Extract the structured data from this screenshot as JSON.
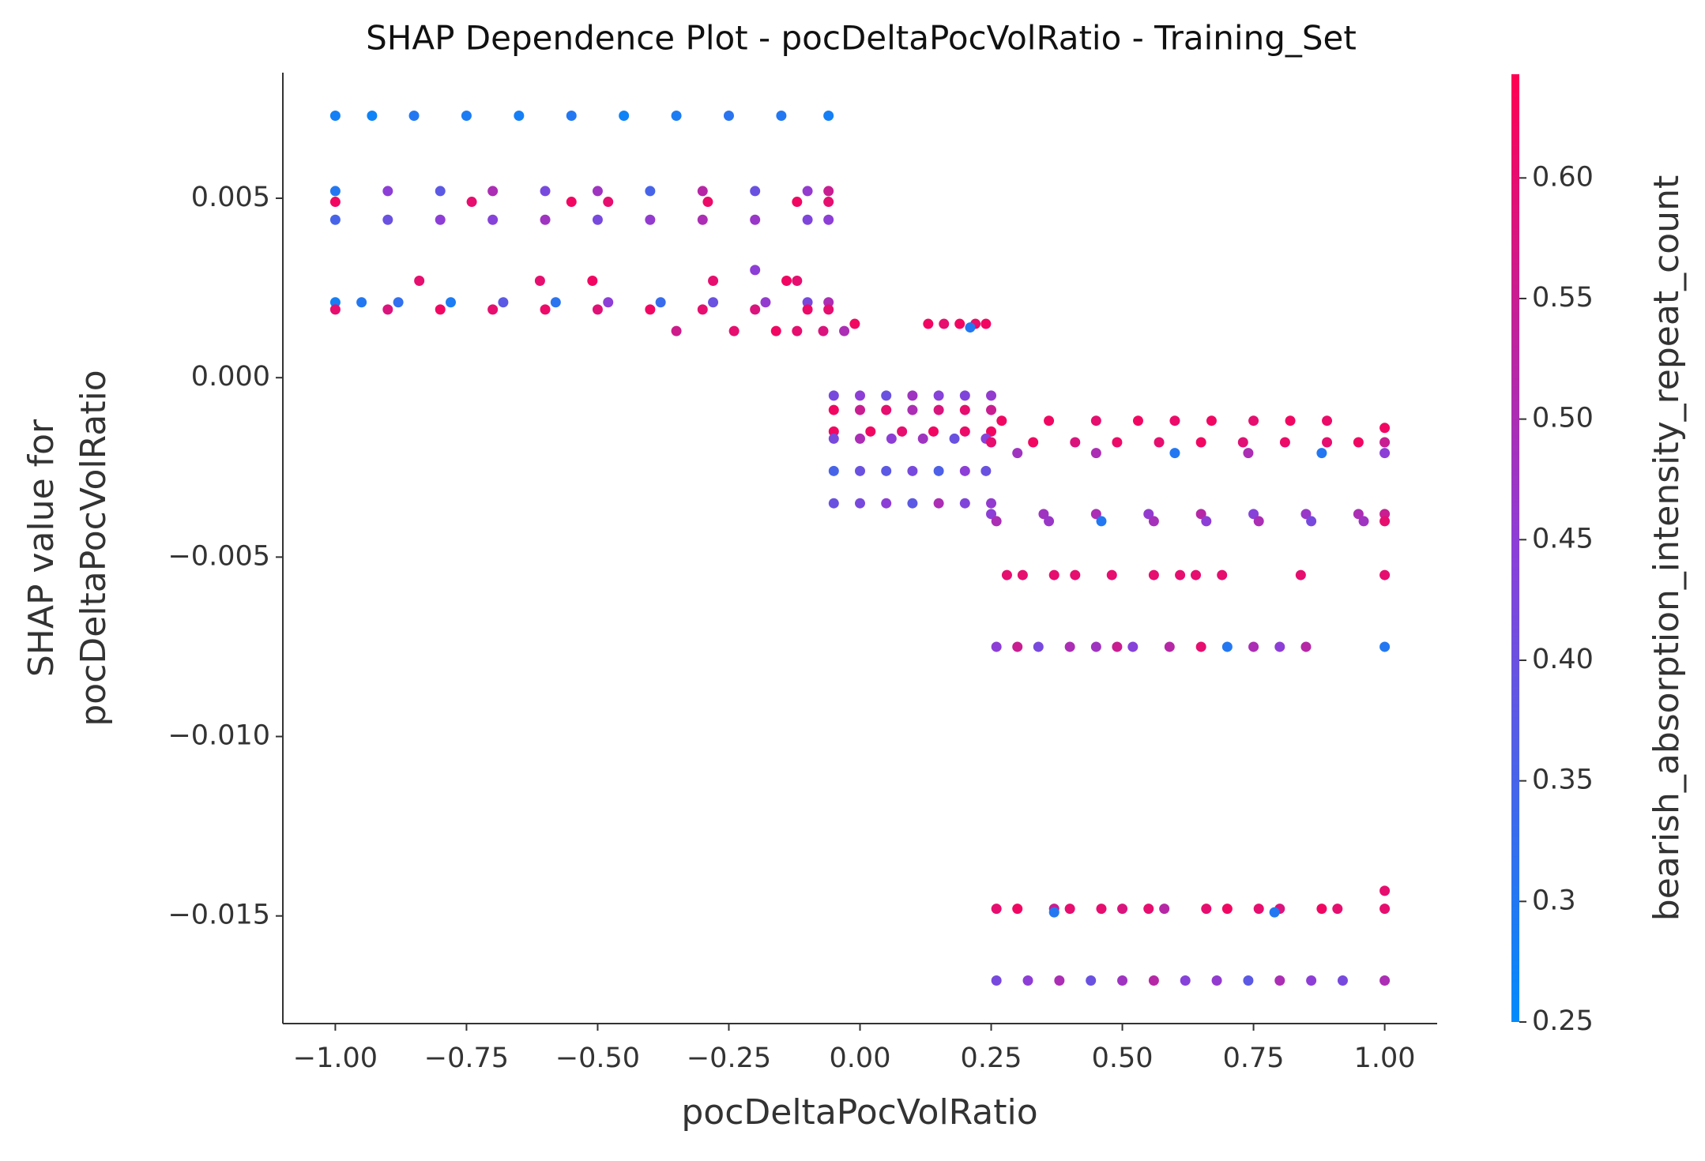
{
  "chart_data": {
    "type": "scatter",
    "title": "SHAP Dependence Plot - pocDeltaPocVolRatio - Training_Set",
    "xlabel": "pocDeltaPocVolRatio",
    "ylabel": [
      "SHAP value for",
      "pocDeltaPocVolRatio"
    ],
    "colorbar_label": "bearish_absorption_intensity_repeat_count",
    "xlim": [
      -1.1,
      1.1
    ],
    "ylim": [
      -0.018,
      0.0085
    ],
    "colorbar_lim": [
      0.25,
      0.643
    ],
    "cmap": [
      "#008bfb",
      "#8b3fd8",
      "#ff0052"
    ],
    "xticks": [
      {
        "value": -1,
        "label": "−1.00"
      },
      {
        "value": -0.75,
        "label": "−0.75"
      },
      {
        "value": -0.5,
        "label": "−0.50"
      },
      {
        "value": -0.25,
        "label": "−0.25"
      },
      {
        "value": 0,
        "label": "0.00"
      },
      {
        "value": 0.25,
        "label": "0.25"
      },
      {
        "value": 0.5,
        "label": "0.50"
      },
      {
        "value": 0.75,
        "label": "0.75"
      },
      {
        "value": 1,
        "label": "1.00"
      }
    ],
    "yticks": [
      {
        "value": -0.015,
        "label": "−0.015"
      },
      {
        "value": -0.01,
        "label": "−0.010"
      },
      {
        "value": -0.005,
        "label": "−0.005"
      },
      {
        "value": 0,
        "label": "0.000"
      },
      0.005
    ],
    "colorbar_ticks": [
      {
        "value": 0.25,
        "label": "0.25"
      },
      0.3,
      0.35,
      {
        "value": 0.4,
        "label": "0.40"
      },
      0.45,
      {
        "value": 0.5,
        "label": "0.50"
      },
      0.55,
      {
        "value": 0.6,
        "label": "0.60"
      }
    ],
    "x": [
      -1.0,
      -0.93,
      -0.85,
      -0.75,
      -0.65,
      -0.55,
      -0.45,
      -0.35,
      -0.25,
      -0.15,
      -0.06,
      -1.0,
      -0.9,
      -0.8,
      -0.7,
      -0.6,
      -0.5,
      -0.4,
      -0.3,
      -0.2,
      -0.1,
      -0.06,
      -1.0,
      -0.74,
      -0.55,
      -0.48,
      -0.29,
      -0.12,
      -0.06,
      -1.0,
      -0.9,
      -0.8,
      -0.7,
      -0.6,
      -0.5,
      -0.4,
      -0.3,
      -0.2,
      -0.1,
      -0.06,
      -0.84,
      -0.61,
      -0.51,
      -0.28,
      -0.2,
      -0.14,
      -0.12,
      -1.0,
      -0.95,
      -0.88,
      -0.78,
      -0.68,
      -0.58,
      -0.48,
      -0.38,
      -0.28,
      -0.18,
      -0.1,
      -0.06,
      -1.0,
      -0.9,
      -0.8,
      -0.7,
      -0.6,
      -0.5,
      -0.4,
      -0.3,
      -0.2,
      -0.1,
      -0.06,
      -0.35,
      -0.24,
      -0.16,
      -0.12,
      -0.07,
      -0.03,
      -0.01,
      0.13,
      0.16,
      0.19,
      0.22,
      0.24,
      0.21,
      -0.05,
      0.0,
      0.05,
      0.1,
      0.15,
      0.2,
      0.25,
      -0.05,
      0.0,
      0.05,
      0.1,
      0.15,
      0.2,
      0.25,
      -0.05,
      0.02,
      0.08,
      0.14,
      0.2,
      0.25,
      -0.05,
      0.0,
      0.06,
      0.12,
      0.18,
      0.24,
      -0.05,
      0.0,
      0.05,
      0.1,
      0.15,
      0.2,
      0.24,
      -0.05,
      0.0,
      0.05,
      0.1,
      0.15,
      0.2,
      0.25,
      0.27,
      0.36,
      0.45,
      0.53,
      0.6,
      0.67,
      0.75,
      0.82,
      0.89,
      1.0,
      0.25,
      0.33,
      0.41,
      0.49,
      0.57,
      0.65,
      0.73,
      0.81,
      0.89,
      0.95,
      1.0,
      0.3,
      0.45,
      0.6,
      0.74,
      0.88,
      1.0,
      0.25,
      0.35,
      0.45,
      0.55,
      0.65,
      0.75,
      0.85,
      0.95,
      1.0,
      0.26,
      0.36,
      0.46,
      0.56,
      0.66,
      0.76,
      0.86,
      0.96,
      1.0,
      0.28,
      0.31,
      0.37,
      0.41,
      0.48,
      0.56,
      0.61,
      0.64,
      0.69,
      0.84,
      1.0,
      0.26,
      0.3,
      0.34,
      0.4,
      0.45,
      0.49,
      0.52,
      0.59,
      0.65,
      0.7,
      0.75,
      0.8,
      0.85,
      1.0,
      0.26,
      0.3,
      0.37,
      0.4,
      0.46,
      0.5,
      0.55,
      0.58,
      0.66,
      0.7,
      0.76,
      0.8,
      0.88,
      0.91,
      1.0,
      0.37,
      0.79,
      1.0,
      0.26,
      0.32,
      0.38,
      0.44,
      0.5,
      0.56,
      0.62,
      0.68,
      0.74,
      0.8,
      0.86,
      0.92,
      1.0
    ],
    "values": [
      0.0073,
      0.0073,
      0.0073,
      0.0073,
      0.0073,
      0.0073,
      0.0073,
      0.0073,
      0.0073,
      0.0073,
      0.0073,
      0.0052,
      0.0052,
      0.0052,
      0.0052,
      0.0052,
      0.0052,
      0.0052,
      0.0052,
      0.0052,
      0.0052,
      0.0052,
      0.0049,
      0.0049,
      0.0049,
      0.0049,
      0.0049,
      0.0049,
      0.0049,
      0.0044,
      0.0044,
      0.0044,
      0.0044,
      0.0044,
      0.0044,
      0.0044,
      0.0044,
      0.0044,
      0.0044,
      0.0044,
      0.0027,
      0.0027,
      0.0027,
      0.0027,
      0.003,
      0.0027,
      0.0027,
      0.0021,
      0.0021,
      0.0021,
      0.0021,
      0.0021,
      0.0021,
      0.0021,
      0.0021,
      0.0021,
      0.0021,
      0.0021,
      0.0021,
      0.0019,
      0.0019,
      0.0019,
      0.0019,
      0.0019,
      0.0019,
      0.0019,
      0.0019,
      0.0019,
      0.0019,
      0.0019,
      0.0013,
      0.0013,
      0.0013,
      0.0013,
      0.0013,
      0.0013,
      0.0015,
      0.0015,
      0.0015,
      0.0015,
      0.0015,
      0.0015,
      0.0014,
      -0.0005,
      -0.0005,
      -0.0005,
      -0.0005,
      -0.0005,
      -0.0005,
      -0.0005,
      -0.0009,
      -0.0009,
      -0.0009,
      -0.0009,
      -0.0009,
      -0.0009,
      -0.0009,
      -0.0015,
      -0.0015,
      -0.0015,
      -0.0015,
      -0.0015,
      -0.0015,
      -0.0017,
      -0.0017,
      -0.0017,
      -0.0017,
      -0.0017,
      -0.0017,
      -0.0026,
      -0.0026,
      -0.0026,
      -0.0026,
      -0.0026,
      -0.0026,
      -0.0026,
      -0.0035,
      -0.0035,
      -0.0035,
      -0.0035,
      -0.0035,
      -0.0035,
      -0.0035,
      -0.0012,
      -0.0012,
      -0.0012,
      -0.0012,
      -0.0012,
      -0.0012,
      -0.0012,
      -0.0012,
      -0.0012,
      -0.0014,
      -0.0018,
      -0.0018,
      -0.0018,
      -0.0018,
      -0.0018,
      -0.0018,
      -0.0018,
      -0.0018,
      -0.0018,
      -0.0018,
      -0.0018,
      -0.0021,
      -0.0021,
      -0.0021,
      -0.0021,
      -0.0021,
      -0.0021,
      -0.0038,
      -0.0038,
      -0.0038,
      -0.0038,
      -0.0038,
      -0.0038,
      -0.0038,
      -0.0038,
      -0.0038,
      -0.004,
      -0.004,
      -0.004,
      -0.004,
      -0.004,
      -0.004,
      -0.004,
      -0.004,
      -0.004,
      -0.0055,
      -0.0055,
      -0.0055,
      -0.0055,
      -0.0055,
      -0.0055,
      -0.0055,
      -0.0055,
      -0.0055,
      -0.0055,
      -0.0055,
      -0.0075,
      -0.0075,
      -0.0075,
      -0.0075,
      -0.0075,
      -0.0075,
      -0.0075,
      -0.0075,
      -0.0075,
      -0.0075,
      -0.0075,
      -0.0075,
      -0.0075,
      -0.0075,
      -0.0148,
      -0.0148,
      -0.0148,
      -0.0148,
      -0.0148,
      -0.0148,
      -0.0148,
      -0.0148,
      -0.0148,
      -0.0148,
      -0.0148,
      -0.0148,
      -0.0148,
      -0.0148,
      -0.0148,
      -0.0149,
      -0.0149,
      -0.0143,
      -0.0168,
      -0.0168,
      -0.0168,
      -0.0168,
      -0.0168,
      -0.0168,
      -0.0168,
      -0.0168,
      -0.0168,
      -0.0168,
      -0.0168,
      -0.0168,
      -0.0168
    ],
    "color_values": [
      0.28,
      0.27,
      0.3,
      0.29,
      0.28,
      0.3,
      0.27,
      0.29,
      0.31,
      0.3,
      0.28,
      0.3,
      0.45,
      0.38,
      0.5,
      0.42,
      0.48,
      0.35,
      0.52,
      0.4,
      0.46,
      0.55,
      0.62,
      0.6,
      0.62,
      0.6,
      0.61,
      0.62,
      0.6,
      0.35,
      0.4,
      0.45,
      0.44,
      0.48,
      0.42,
      0.46,
      0.5,
      0.47,
      0.43,
      0.45,
      0.6,
      0.6,
      0.62,
      0.6,
      0.45,
      0.62,
      0.6,
      0.28,
      0.3,
      0.32,
      0.29,
      0.38,
      0.31,
      0.45,
      0.33,
      0.4,
      0.46,
      0.42,
      0.5,
      0.6,
      0.58,
      0.62,
      0.6,
      0.61,
      0.59,
      0.62,
      0.6,
      0.58,
      0.61,
      0.6,
      0.56,
      0.6,
      0.62,
      0.6,
      0.58,
      0.5,
      0.62,
      0.62,
      0.6,
      0.62,
      0.61,
      0.62,
      0.3,
      0.42,
      0.45,
      0.4,
      0.48,
      0.44,
      0.43,
      0.46,
      0.62,
      0.55,
      0.6,
      0.5,
      0.58,
      0.6,
      0.55,
      0.62,
      0.62,
      0.6,
      0.62,
      0.61,
      0.62,
      0.42,
      0.5,
      0.45,
      0.48,
      0.4,
      0.44,
      0.35,
      0.4,
      0.38,
      0.42,
      0.36,
      0.45,
      0.4,
      0.4,
      0.42,
      0.45,
      0.38,
      0.5,
      0.43,
      0.46,
      0.62,
      0.62,
      0.6,
      0.62,
      0.61,
      0.62,
      0.6,
      0.62,
      0.61,
      0.62,
      0.6,
      0.62,
      0.58,
      0.61,
      0.6,
      0.62,
      0.59,
      0.61,
      0.6,
      0.62,
      0.55,
      0.48,
      0.5,
      0.3,
      0.5,
      0.3,
      0.45,
      0.45,
      0.48,
      0.5,
      0.46,
      0.52,
      0.44,
      0.47,
      0.5,
      0.55,
      0.5,
      0.47,
      0.3,
      0.49,
      0.45,
      0.5,
      0.42,
      0.48,
      0.6,
      0.6,
      0.6,
      0.6,
      0.6,
      0.6,
      0.6,
      0.6,
      0.6,
      0.6,
      0.6,
      0.6,
      0.45,
      0.55,
      0.42,
      0.5,
      0.48,
      0.55,
      0.44,
      0.52,
      0.6,
      0.3,
      0.5,
      0.45,
      0.52,
      0.3,
      0.6,
      0.62,
      0.55,
      0.6,
      0.6,
      0.58,
      0.6,
      0.52,
      0.6,
      0.62,
      0.6,
      0.58,
      0.62,
      0.6,
      0.6,
      0.3,
      0.3,
      0.6,
      0.42,
      0.45,
      0.5,
      0.4,
      0.48,
      0.52,
      0.44,
      0.46,
      0.38,
      0.5,
      0.45,
      0.42,
      0.5
    ]
  }
}
